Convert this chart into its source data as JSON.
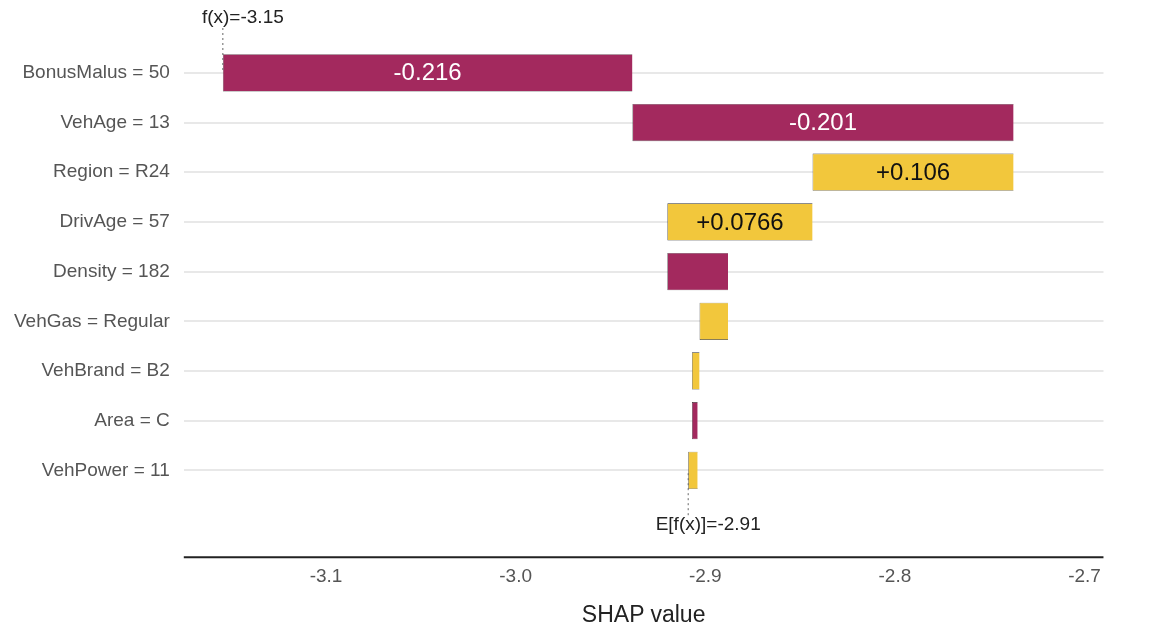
{
  "chart_data": {
    "type": "bar",
    "orientation": "horizontal",
    "xlabel": "SHAP value",
    "categories": [
      "BonusMalus = 50",
      "VehAge = 13",
      "Region = R24",
      "DrivAge = 57",
      "Density = 182",
      "VehGas = Regular",
      "VehBrand = B2",
      "Area = C",
      "VehPower = 11"
    ],
    "values": [
      -0.216,
      -0.201,
      0.106,
      0.0766,
      -0.032,
      0.015,
      0.004,
      -0.003,
      0.005
    ],
    "base": [
      -2.9384,
      -2.7374,
      -2.8434,
      -2.92,
      -2.888,
      -2.903,
      -2.907,
      -2.904,
      -2.909
    ],
    "colors": [
      "#a3295e",
      "#a3295e",
      "#f2c73c",
      "#f2c73c",
      "#a3295e",
      "#f2c73c",
      "#f2c73c",
      "#a3295e",
      "#f2c73c"
    ],
    "value_labels": [
      "-0.216",
      "-0.201",
      "+0.106",
      "+0.0766",
      null,
      null,
      null,
      null,
      null
    ],
    "annotations": [
      {
        "text": "f(x)=-3.15",
        "x": -3.1544,
        "y": "BonusMalus = 50"
      },
      {
        "text": "E[f(x)]=-2.91",
        "x": -2.909,
        "y": "VehPower = 11"
      }
    ],
    "xlim": [
      -3.175,
      -2.69
    ],
    "xticks": [
      -3.1,
      {
        "value": -3.0,
        "label": "-3.0"
      },
      -2.9,
      -2.8,
      -2.7
    ],
    "grid": "y",
    "legend": false
  }
}
